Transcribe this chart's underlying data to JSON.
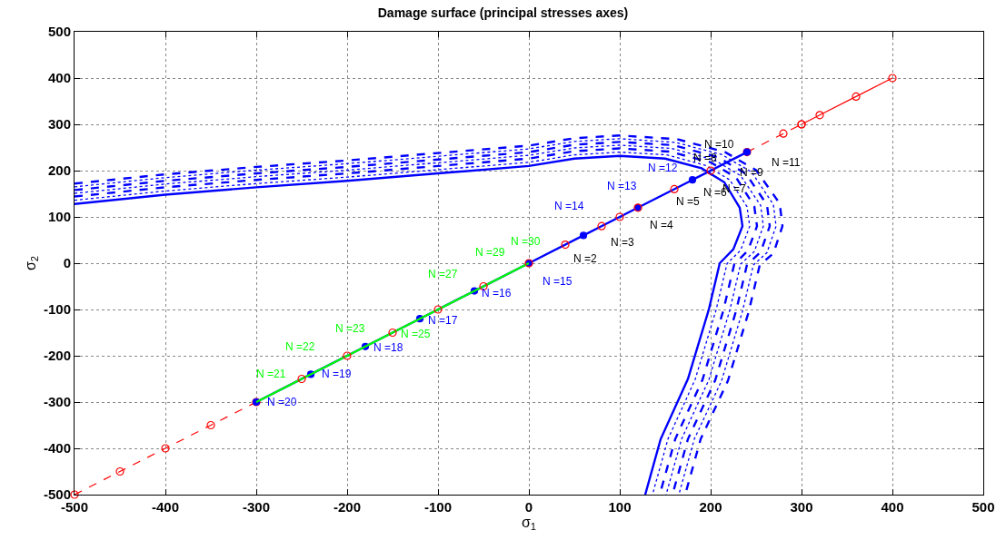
{
  "chart_data": {
    "type": "line",
    "title": "Damage surface (principal stresses axes)",
    "xlabel": "σ$_{1}$",
    "ylabel": "σ$_{2}$",
    "xlim": [
      -500,
      500
    ],
    "ylim": [
      -500,
      500
    ],
    "xticks": [
      -500,
      -400,
      -300,
      -200,
      -100,
      0,
      100,
      200,
      300,
      400,
      500
    ],
    "yticks": [
      -500,
      -400,
      -300,
      -200,
      -100,
      0,
      100,
      200,
      300,
      400,
      500
    ],
    "grid": true,
    "marker": "none",
    "series": [
      {
        "color": "#0000ff",
        "line_style": "solid",
        "x": [
          -500,
          -400,
          -300,
          -200,
          -100,
          0,
          50,
          100,
          150,
          190,
          215,
          232,
          235,
          225,
          210,
          198,
          175,
          145,
          128
        ],
        "values": [
          128,
          148,
          164,
          178,
          194,
          210,
          226,
          232,
          226,
          205,
          175,
          120,
          80,
          30,
          0,
          -100,
          -250,
          -380,
          -500
        ]
      },
      {
        "color": "#0000ff",
        "line_style": "dotted",
        "x": [
          -500,
          -400,
          -300,
          -200,
          -100,
          0,
          50,
          100,
          152,
          195,
          221,
          240,
          243,
          233,
          218,
          206,
          183,
          153,
          136
        ],
        "values": [
          136,
          156,
          172,
          186,
          202,
          218,
          234,
          240,
          234,
          211,
          180,
          122,
          80,
          28,
          -1,
          -101,
          -251,
          -380,
          -500
        ]
      },
      {
        "color": "#0000ff",
        "line_style": "dashed",
        "x": [
          -500,
          -400,
          -300,
          -200,
          -100,
          0,
          50,
          100,
          155,
          200,
          228,
          248,
          251,
          241,
          226,
          214,
          191,
          161,
          144
        ],
        "values": [
          144,
          164,
          180,
          194,
          210,
          226,
          242,
          248,
          241,
          218,
          185,
          123,
          80,
          27,
          -2,
          -102,
          -252,
          -380,
          -500
        ]
      },
      {
        "color": "#0000ff",
        "line_style": "dotted",
        "x": [
          -500,
          -400,
          -300,
          -200,
          -100,
          0,
          50,
          100,
          157,
          204,
          233,
          255,
          258,
          248,
          233,
          221,
          198,
          168,
          151
        ],
        "values": [
          151,
          171,
          187,
          201,
          217,
          233,
          249,
          255,
          248,
          223,
          189,
          125,
          80,
          25,
          -2,
          -102,
          -252,
          -380,
          -500
        ]
      },
      {
        "color": "#0000ff",
        "line_style": "dashed",
        "x": [
          -500,
          -400,
          -300,
          -200,
          -100,
          0,
          50,
          100,
          159,
          208,
          239,
          262,
          265,
          255,
          240,
          228,
          205,
          175,
          158
        ],
        "values": [
          158,
          178,
          194,
          208,
          224,
          240,
          256,
          262,
          255,
          229,
          193,
          126,
          80,
          24,
          -3,
          -103,
          -253,
          -380,
          -500
        ]
      },
      {
        "color": "#0000ff",
        "line_style": "dotted",
        "x": [
          -500,
          -400,
          -300,
          -200,
          -100,
          0,
          50,
          100,
          161,
          212,
          245,
          269,
          272,
          262,
          247,
          235,
          212,
          182,
          165
        ],
        "values": [
          165,
          185,
          201,
          215,
          231,
          247,
          263,
          269,
          261,
          235,
          197,
          127,
          80,
          23,
          -4,
          -104,
          -254,
          -380,
          -500
        ]
      },
      {
        "color": "#0000ff",
        "line_style": "dashed",
        "x": [
          -500,
          -400,
          -300,
          -200,
          -100,
          0,
          50,
          100,
          163,
          216,
          250,
          276,
          279,
          269,
          254,
          242,
          219,
          189,
          172
        ],
        "values": [
          172,
          192,
          208,
          222,
          238,
          254,
          270,
          276,
          268,
          240,
          201,
          129,
          80,
          21,
          -4,
          -104,
          -254,
          -380,
          -500
        ]
      },
      {
        "color": "#ff0000",
        "line_style": "dashed",
        "marker": "circle",
        "x": [
          -500,
          -450,
          -400,
          -350,
          -300
        ],
        "values": [
          -500,
          -450,
          -400,
          -350,
          -300
        ]
      },
      {
        "color": "#ff0000",
        "line_style": "dashed",
        "marker": "circle",
        "x": [
          240,
          280,
          300
        ],
        "values": [
          240,
          280,
          300
        ]
      },
      {
        "color": "#ff0000",
        "line_style": "solid",
        "marker": "circle",
        "x": [
          300,
          320,
          360,
          400
        ],
        "values": [
          300,
          320,
          360,
          400
        ]
      },
      {
        "color": "#0000ff",
        "line_style": "solid",
        "marker": "dot",
        "x": [
          -300,
          -240,
          -180,
          -120,
          -60,
          0,
          60,
          120,
          180,
          240
        ],
        "values": [
          -300,
          -240,
          -180,
          -120,
          -60,
          0,
          60,
          120,
          180,
          240
        ]
      },
      {
        "color": "#00ff00",
        "line_style": "solid",
        "x": [
          -300,
          0
        ],
        "values": [
          -300,
          0
        ]
      },
      {
        "type": "scatter",
        "color": "#ff0000",
        "marker": "circle",
        "x": [
          -250,
          -200,
          -150,
          -100,
          -50,
          0,
          40,
          80,
          100,
          120,
          160,
          200
        ],
        "values": [
          -250,
          -200,
          -150,
          -100,
          -50,
          0,
          40,
          80,
          100,
          120,
          160,
          200
        ]
      }
    ],
    "annotations": [
      {
        "text": "N =2",
        "x": 40,
        "y": 40
      },
      {
        "text": "N =3",
        "x": 80,
        "y": 80
      },
      {
        "text": "N =4",
        "x": 120,
        "y": 120
      },
      {
        "text": "N =5",
        "x": 160,
        "y": 160
      },
      {
        "text": "N =6",
        "x": 180,
        "y": 180
      },
      {
        "text": "N =7",
        "x": 200,
        "y": 200
      },
      {
        "text": "N =8",
        "x": 200,
        "y": 200
      },
      {
        "text": "N =9",
        "x": 220,
        "y": 220
      },
      {
        "text": "N =10",
        "x": 240,
        "y": 240
      },
      {
        "text": "N =11",
        "x": 240,
        "y": 240
      },
      {
        "text": "N =12",
        "x": 160,
        "y": 160
      },
      {
        "text": "N =13",
        "x": 120,
        "y": 120
      },
      {
        "text": "N =14",
        "x": 60,
        "y": 60
      },
      {
        "text": "N =15",
        "x": 0,
        "y": 0
      },
      {
        "text": "N =16",
        "x": -60,
        "y": -60
      },
      {
        "text": "N =17",
        "x": -120,
        "y": -120
      },
      {
        "text": "N =18",
        "x": -180,
        "y": -180
      },
      {
        "text": "N =19",
        "x": -240,
        "y": -240
      },
      {
        "text": "N =20",
        "x": -300,
        "y": -300
      },
      {
        "text": "N =21",
        "x": -250,
        "y": -250
      },
      {
        "text": "N =22",
        "x": -200,
        "y": -200
      },
      {
        "text": "N =23",
        "x": -180,
        "y": -180
      },
      {
        "text": "N =25",
        "x": -150,
        "y": -150
      },
      {
        "text": "N =27",
        "x": -100,
        "y": -100
      },
      {
        "text": "N =29",
        "x": -50,
        "y": -50
      },
      {
        "text": "N =30",
        "x": 0,
        "y": 0
      }
    ]
  }
}
